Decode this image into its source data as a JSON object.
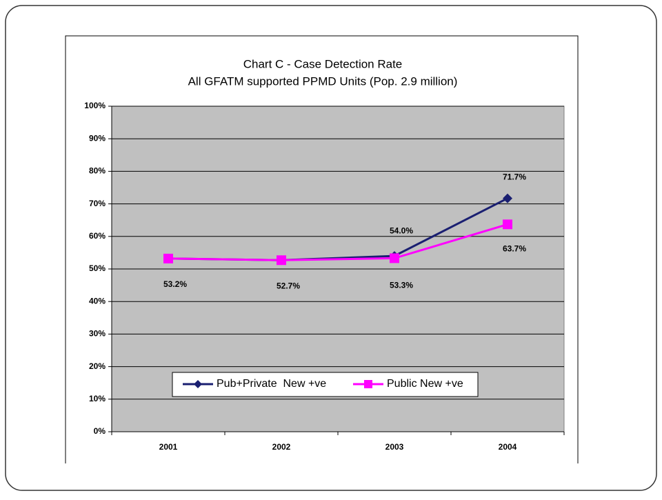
{
  "chart_data": {
    "type": "line",
    "title": "Chart C - Case Detection Rate",
    "subtitle": "All GFATM supported PPMD Units (Pop. 2.9 million)",
    "categories": [
      "2001",
      "2002",
      "2003",
      "2004"
    ],
    "series": [
      {
        "name": "Pub+Private  New +ve",
        "color": "#1a1f71",
        "marker": "diamond",
        "values": [
          53.2,
          52.7,
          54.0,
          71.7
        ],
        "value_labels": [
          "53.2%",
          "52.7%",
          "54.0%",
          "71.7%"
        ]
      },
      {
        "name": "Public New +ve",
        "color": "#ff00ff",
        "marker": "square",
        "values": [
          53.2,
          52.7,
          53.3,
          63.7
        ],
        "value_labels": [
          null,
          null,
          "53.3%",
          "63.7%"
        ]
      }
    ],
    "ylim": [
      0,
      100
    ],
    "yticks": [
      {
        "value": 0,
        "label": "0%"
      },
      {
        "value": 10,
        "label": "10%"
      },
      {
        "value": 20,
        "label": "20%"
      },
      {
        "value": 30,
        "label": "30%"
      },
      {
        "value": 40,
        "label": "40%"
      },
      {
        "value": 50,
        "label": "50%"
      },
      {
        "value": 60,
        "label": "60%"
      },
      {
        "value": 70,
        "label": "70%"
      },
      {
        "value": 80,
        "label": "80%"
      },
      {
        "value": 90,
        "label": "90%"
      },
      {
        "value": 100,
        "label": "100%"
      }
    ],
    "grid": true,
    "legend": "bottom"
  }
}
